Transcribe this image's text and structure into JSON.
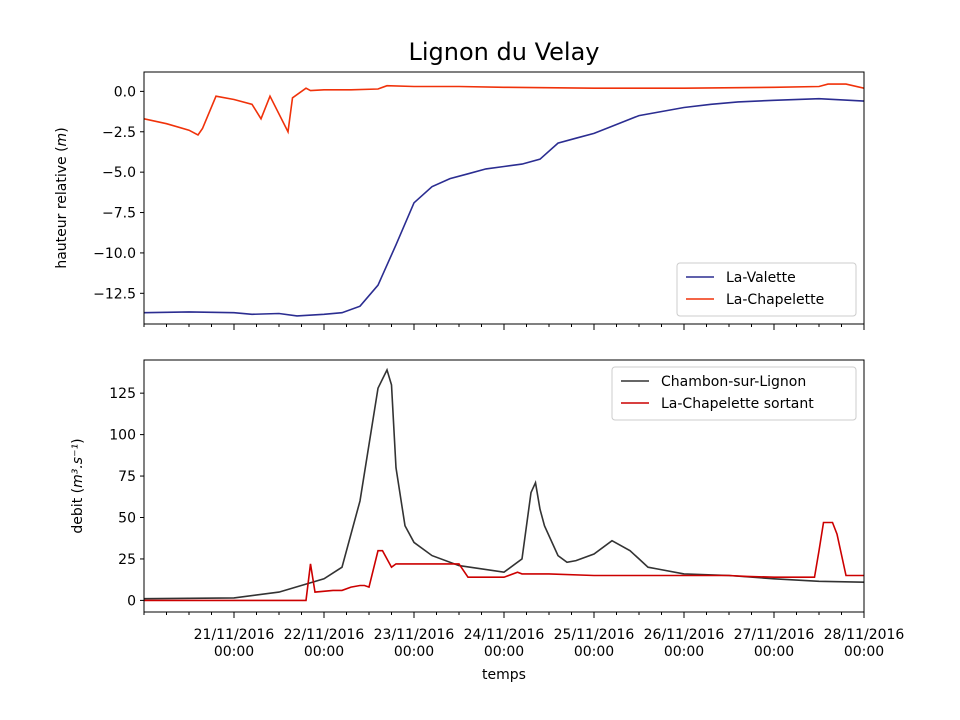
{
  "chart_data": [
    {
      "type": "line",
      "title": "Lignon du Velay",
      "xlabel": "",
      "ylabel": "hauteur relative (",
      "ylabel_unit": "m",
      "ylabel_close": ")",
      "ylim": [
        -14.4,
        1.2
      ],
      "yticks": [
        0.0,
        -2.5,
        -5.0,
        -7.5,
        -10.0,
        -12.5
      ],
      "ytick_labels": [
        "0.0",
        "−2.5",
        "−5.0",
        "−7.5",
        "−10.0",
        "−12.5"
      ],
      "grid": false,
      "legend_position": "lower-right",
      "series": [
        {
          "name": "La-Valette",
          "color": "#2b2d91",
          "x": [
            0,
            0.5,
            1,
            1.2,
            1.5,
            1.7,
            2,
            2.2,
            2.4,
            2.6,
            2.8,
            3.0,
            3.2,
            3.4,
            3.6,
            3.8,
            4.0,
            4.2,
            4.4,
            4.6,
            4.8,
            5,
            5.5,
            6,
            6.3,
            6.6,
            7,
            7.5,
            8
          ],
          "values": [
            -13.7,
            -13.65,
            -13.7,
            -13.8,
            -13.75,
            -13.9,
            -13.8,
            -13.7,
            -13.3,
            -12.0,
            -9.5,
            -6.9,
            -5.9,
            -5.4,
            -5.1,
            -4.8,
            -4.65,
            -4.5,
            -4.2,
            -3.2,
            -2.9,
            -2.6,
            -1.5,
            -1.0,
            -0.8,
            -0.65,
            -0.55,
            -0.45,
            -0.6
          ]
        },
        {
          "name": "La-Chapelette",
          "color": "#f0320a",
          "x": [
            0,
            0.25,
            0.5,
            0.6,
            0.65,
            0.8,
            0.8,
            1.0,
            1.2,
            1.3,
            1.4,
            1.6,
            1.65,
            1.8,
            1.85,
            2,
            2.3,
            2.6,
            2.7,
            3,
            3.5,
            4,
            5,
            6,
            7,
            7.5,
            7.6,
            7.8,
            8
          ],
          "values": [
            -1.7,
            -2.0,
            -2.4,
            -2.7,
            -2.3,
            -0.3,
            -0.3,
            -0.5,
            -0.8,
            -1.7,
            -0.3,
            -2.5,
            -0.4,
            0.2,
            0.05,
            0.1,
            0.1,
            0.15,
            0.35,
            0.3,
            0.3,
            0.25,
            0.2,
            0.2,
            0.25,
            0.3,
            0.45,
            0.45,
            0.2
          ]
        }
      ]
    },
    {
      "type": "line",
      "title": "",
      "xlabel": "temps",
      "ylabel": "debit (",
      "ylabel_unit": "m³.s⁻¹",
      "ylabel_close": ")",
      "ylim": [
        -7,
        145
      ],
      "yticks": [
        0,
        25,
        50,
        75,
        100,
        125
      ],
      "ytick_labels": [
        "0",
        "25",
        "50",
        "75",
        "100",
        "125"
      ],
      "grid": false,
      "legend_position": "upper-right",
      "series": [
        {
          "name": "Chambon-sur-Lignon",
          "color": "#333333",
          "x": [
            0,
            1,
            1.5,
            2,
            2.2,
            2.4,
            2.6,
            2.7,
            2.75,
            2.8,
            2.9,
            3.0,
            3.2,
            3.5,
            4,
            4.2,
            4.3,
            4.35,
            4.4,
            4.45,
            4.6,
            4.7,
            4.8,
            5,
            5.2,
            5.4,
            5.5,
            5.6,
            5.7,
            6,
            6.5,
            7,
            7.5,
            8
          ],
          "values": [
            1,
            1.5,
            5,
            13,
            20,
            60,
            128,
            139,
            130,
            80,
            45,
            35,
            27,
            21,
            17,
            25,
            65,
            71,
            55,
            45,
            27,
            23,
            24,
            28,
            36,
            30,
            25,
            20,
            19,
            16,
            15,
            13,
            11.5,
            11
          ],
          "x_detail": null
        },
        {
          "name": "La-Chapelette sortant",
          "color": "#cc0000",
          "x": [
            0,
            1.8,
            1.85,
            1.9,
            2.1,
            2.2,
            2.3,
            2.4,
            2.45,
            2.5,
            2.6,
            2.65,
            2.75,
            2.8,
            3,
            3.5,
            3.6,
            3.7,
            4.0,
            4.15,
            4.2,
            4.5,
            5,
            6,
            6.5,
            6.7,
            7.0,
            7.45,
            7.5,
            7.55,
            7.65,
            7.7,
            7.8,
            8
          ],
          "values": [
            0,
            0,
            22,
            5,
            6,
            6,
            8,
            9,
            9,
            8,
            30,
            30,
            20,
            22,
            22,
            22,
            14,
            14,
            14,
            17,
            16,
            16,
            15,
            15,
            15,
            14.5,
            14,
            14,
            30,
            47,
            47,
            40,
            15,
            15
          ]
        }
      ]
    }
  ],
  "shared_x_axis": {
    "label": "temps",
    "tick_labels_line1": [
      "21/11/2016",
      "22/11/2016",
      "23/11/2016",
      "24/11/2016",
      "25/11/2016",
      "26/11/2016",
      "27/11/2016",
      "28/11/2016"
    ],
    "tick_labels_line2": [
      "00:00",
      "00:00",
      "00:00",
      "00:00",
      "00:00",
      "00:00",
      "00:00",
      "00:00"
    ]
  }
}
